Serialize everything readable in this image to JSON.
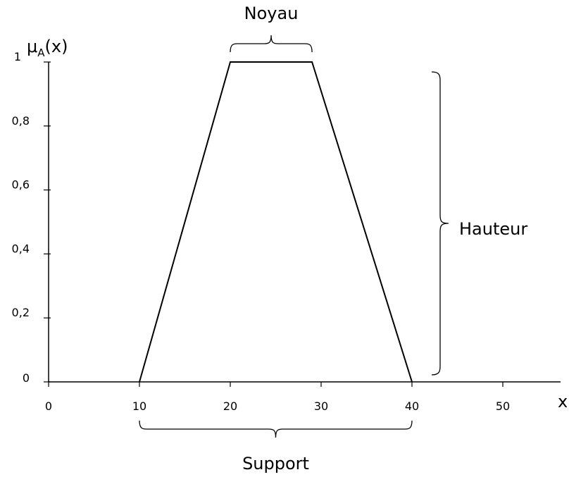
{
  "chart_data": {
    "type": "line",
    "title": "",
    "xlabel": "x",
    "ylabel": {
      "base": "μ",
      "subscript": "A",
      "suffix": "(x)"
    },
    "xlim": [
      0,
      56
    ],
    "ylim": [
      0,
      1
    ],
    "x_ticks": [
      {
        "value": 0,
        "label": "0"
      },
      {
        "value": 10,
        "label": "10"
      },
      {
        "value": 20,
        "label": "20"
      },
      {
        "value": 30,
        "label": "30"
      },
      {
        "value": 40,
        "label": "40"
      },
      {
        "value": 50,
        "label": "50"
      }
    ],
    "y_ticks": [
      {
        "value": 0,
        "label": "0"
      },
      {
        "value": 0.2,
        "label": "0,2"
      },
      {
        "value": 0.4,
        "label": "0,4"
      },
      {
        "value": 0.6,
        "label": "0,6"
      },
      {
        "value": 0.8,
        "label": "0,8"
      },
      {
        "value": 1,
        "label": "1"
      }
    ],
    "grid": false,
    "series": [
      {
        "x": [
          10,
          20,
          29,
          40
        ],
        "y": [
          0,
          1,
          1,
          0
        ],
        "color": "#000000"
      }
    ],
    "annotations": {
      "noyau": {
        "label": "Noyau",
        "x_range": [
          20,
          29
        ]
      },
      "support": {
        "label": "Support",
        "x_range": [
          10,
          40
        ]
      },
      "hauteur": {
        "label": "Hauteur",
        "y_range": [
          0,
          1
        ]
      }
    }
  }
}
